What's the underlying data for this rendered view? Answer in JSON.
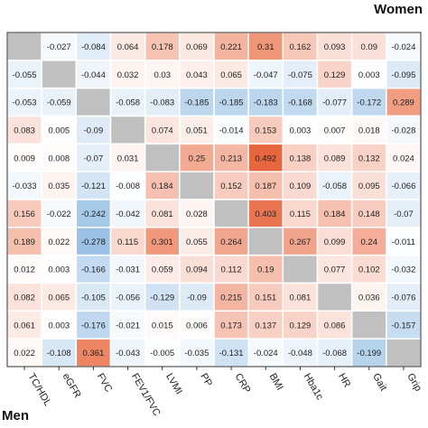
{
  "labels": {
    "top_right": "Women",
    "bottom_left": "Men"
  },
  "chart_data": {
    "type": "heatmap",
    "title": "",
    "xlabel": "",
    "ylabel": "",
    "variables": [
      "TC/HDL",
      "eGFR",
      "FVC",
      "FEV1/FVC",
      "LVMI",
      "PP",
      "CRP",
      "BMI",
      "Hba1c",
      "HR",
      "Gait",
      "Grip"
    ],
    "upper_triangle_group": "Women",
    "lower_triangle_group": "Men",
    "diagonal": "gray",
    "color_scale": {
      "negative": "#5b9bd5",
      "zero": "#ffffff",
      "positive": "#e8663d",
      "missing": "#c0c0c0"
    },
    "grid": true,
    "values": [
      [
        null,
        -0.027,
        -0.084,
        0.064,
        0.178,
        0.069,
        0.221,
        0.31,
        0.162,
        0.093,
        0.09,
        -0.024
      ],
      [
        -0.055,
        null,
        -0.044,
        0.032,
        0.03,
        0.043,
        0.065,
        -0.047,
        -0.075,
        0.129,
        0.003,
        -0.095
      ],
      [
        -0.053,
        -0.059,
        null,
        -0.058,
        -0.083,
        -0.185,
        -0.185,
        -0.183,
        -0.168,
        -0.077,
        -0.172,
        0.289
      ],
      [
        0.083,
        0.005,
        -0.09,
        null,
        0.074,
        0.051,
        -0.014,
        0.153,
        0.003,
        0.007,
        0.018,
        -0.028
      ],
      [
        0.009,
        0.008,
        -0.07,
        0.031,
        null,
        0.25,
        0.213,
        0.492,
        0.138,
        0.089,
        0.132,
        0.024
      ],
      [
        -0.033,
        0.035,
        -0.121,
        -0.008,
        0.184,
        null,
        0.152,
        0.187,
        0.109,
        -0.058,
        0.095,
        -0.066
      ],
      [
        0.156,
        -0.022,
        -0.242,
        -0.042,
        0.081,
        0.028,
        null,
        0.403,
        0.115,
        0.184,
        0.148,
        -0.07
      ],
      [
        0.189,
        0.022,
        -0.278,
        0.115,
        0.301,
        0.055,
        0.264,
        null,
        0.267,
        0.099,
        0.24,
        -0.011
      ],
      [
        0.012,
        0.003,
        -0.166,
        -0.031,
        0.059,
        0.094,
        0.112,
        0.19,
        null,
        0.077,
        0.102,
        -0.032
      ],
      [
        0.082,
        0.065,
        -0.105,
        -0.056,
        -0.129,
        -0.09,
        0.215,
        0.151,
        0.081,
        null,
        0.036,
        -0.076
      ],
      [
        0.061,
        0.003,
        -0.176,
        -0.021,
        0.015,
        0.006,
        0.173,
        0.137,
        0.129,
        0.086,
        null,
        -0.157
      ],
      [
        0.022,
        -0.108,
        0.361,
        -0.043,
        -0.005,
        -0.035,
        -0.131,
        -0.024,
        -0.048,
        -0.068,
        -0.199,
        null
      ]
    ]
  }
}
